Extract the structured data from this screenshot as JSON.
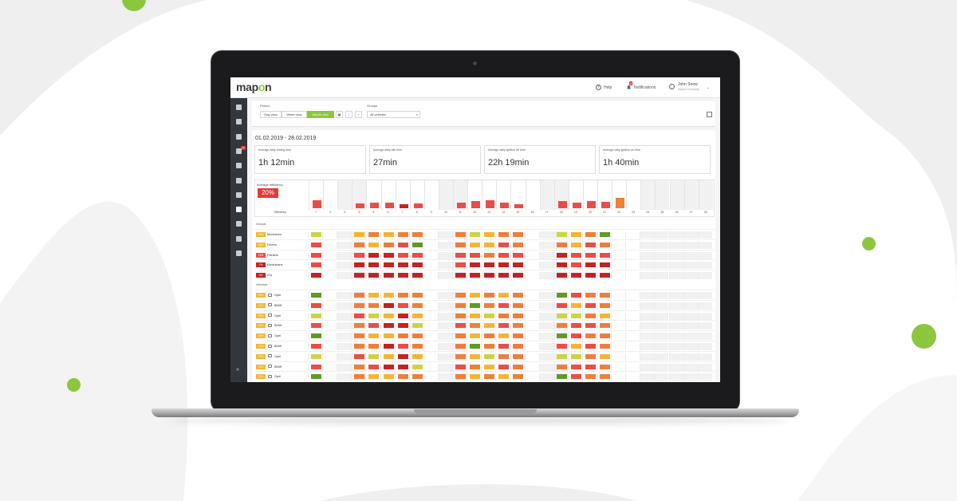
{
  "app": {
    "logo_prefix": "map",
    "logo_o": "o",
    "logo_suffix": "n"
  },
  "topbar": {
    "help": "Help",
    "notifications": "Notifications",
    "notif_count": "6",
    "user_name": "John Snow",
    "user_company": "Mapon Company"
  },
  "sidebar": {
    "badge": "12",
    "icons": [
      "dashboard-icon",
      "map-icon",
      "document-icon",
      "routes-icon",
      "wrench-icon",
      "person-icon",
      "fuel-icon",
      "clipboard-icon",
      "gear-icon",
      "clock-icon",
      "calendar-icon"
    ],
    "expand_icon": "»"
  },
  "filters": {
    "period_label": "Period",
    "day_view": "Day view",
    "week_view": "Week view",
    "month_view": "Month view",
    "groups_label": "Groups",
    "groups_value": "All vehicles",
    "prev": "‹",
    "next": "›"
  },
  "date_range": "01.02.2019 - 28.02.2019",
  "cards": [
    {
      "title": "Average daily driving time",
      "value": "1h 12min"
    },
    {
      "title": "Average daily idle time",
      "value": "27min"
    },
    {
      "title": "Average daily ignition off time",
      "value": "22h 19min"
    },
    {
      "title": "Average daily ignition on time",
      "value": "1h 40min"
    }
  ],
  "efficiency": {
    "label": "Average efficiency",
    "value": "20%",
    "row_label": "Efficiency",
    "days": [
      "1",
      "2",
      "3",
      "4",
      "5",
      "6",
      "7",
      "8",
      "9",
      "10",
      "11",
      "12",
      "13",
      "14",
      "15",
      "16",
      "17",
      "18",
      "19",
      "20",
      "21",
      "22",
      "23",
      "24",
      "25",
      "26",
      "27",
      "28"
    ],
    "weekend_days": [
      2,
      3,
      9,
      10,
      16,
      17,
      23,
      24,
      25,
      26,
      27,
      28
    ],
    "bar_values": [
      0.35,
      0,
      0,
      0.2,
      0.22,
      0.22,
      0.18,
      0.2,
      0,
      0,
      0.25,
      0.3,
      0.35,
      0.25,
      0.18,
      0,
      0,
      0.3,
      0.25,
      0.3,
      0.28,
      0.42,
      0,
      0,
      0,
      0,
      0,
      0
    ],
    "bar_colors": [
      "r",
      "",
      "",
      "r",
      "r",
      "r",
      "d",
      "r",
      "",
      "",
      "r",
      "r",
      "r",
      "r",
      "r",
      "",
      "",
      "r",
      "r",
      "r",
      "r",
      "o",
      "",
      "",
      "",
      "",
      "",
      ""
    ]
  },
  "colors": {
    "g": "#5f9a24",
    "y": "#cbd444",
    "a": "#f5b533",
    "o": "#f07e3a",
    "r": "#ec4c47",
    "d": "#c42223"
  },
  "groups_section": "Groups",
  "groups": [
    {
      "pct": "53%",
      "pct_color": "a",
      "name": "Mechanics",
      "cells": [
        "y",
        "",
        "",
        "a",
        "o",
        "a",
        "o",
        "o",
        "",
        "",
        "o",
        "y",
        "a",
        "o",
        "o",
        "",
        "",
        "y",
        "a",
        "o",
        "g",
        "",
        "",
        "",
        "",
        "",
        "",
        ""
      ]
    },
    {
      "pct": "46%",
      "pct_color": "a",
      "name": "Drivers",
      "cells": [
        "r",
        "",
        "",
        "o",
        "a",
        "o",
        "r",
        "g",
        "",
        "",
        "o",
        "a",
        "a",
        "r",
        "o",
        "",
        "",
        "o",
        "a",
        "r",
        "o",
        "",
        "",
        "",
        "",
        "",
        "",
        ""
      ]
    },
    {
      "pct": "19%",
      "pct_color": "r",
      "name": "Painters",
      "cells": [
        "r",
        "",
        "",
        "r",
        "d",
        "d",
        "r",
        "r",
        "",
        "",
        "r",
        "r",
        "o",
        "r",
        "r",
        "",
        "",
        "d",
        "r",
        "r",
        "r",
        "",
        "",
        "",
        "",
        "",
        "",
        ""
      ]
    },
    {
      "pct": "7%",
      "pct_color": "d",
      "name": "Electricians",
      "cells": [
        "r",
        "",
        "",
        "d",
        "d",
        "d",
        "d",
        "d",
        "",
        "",
        "r",
        "d",
        "d",
        "d",
        "d",
        "",
        "",
        "d",
        "r",
        "d",
        "d",
        "",
        "",
        "",
        "",
        "",
        "",
        ""
      ]
    },
    {
      "pct": "6%",
      "pct_color": "d",
      "name": "ISA",
      "cells": [
        "d",
        "",
        "",
        "d",
        "d",
        "d",
        "d",
        "d",
        "",
        "",
        "d",
        "d",
        "d",
        "d",
        "d",
        "",
        "",
        "d",
        "d",
        "d",
        "d",
        "",
        "",
        "",
        "",
        "",
        "",
        ""
      ]
    }
  ],
  "vehicles_section": "Vehicles",
  "vehicles": [
    {
      "pct": "53%",
      "pct_color": "a",
      "name": "Opel",
      "cells": [
        "g",
        "",
        "",
        "o",
        "a",
        "a",
        "o",
        "o",
        "",
        "",
        "o",
        "a",
        "o",
        "a",
        "o",
        "",
        "",
        "g",
        "r",
        "o",
        "o",
        "",
        "",
        "",
        "",
        "",
        "",
        ""
      ]
    },
    {
      "pct": "47%",
      "pct_color": "a",
      "name": "BMW",
      "cells": [
        "r",
        "",
        "",
        "o",
        "o",
        "d",
        "r",
        "o",
        "",
        "",
        "o",
        "g",
        "o",
        "r",
        "o",
        "",
        "",
        "r",
        "a",
        "r",
        "o",
        "",
        "",
        "",
        "",
        "",
        "",
        ""
      ]
    },
    {
      "pct": "53%",
      "pct_color": "a",
      "name": "Opel",
      "cells": [
        "y",
        "",
        "",
        "r",
        "y",
        "a",
        "d",
        "a",
        "",
        "",
        "o",
        "a",
        "y",
        "o",
        "o",
        "",
        "",
        "y",
        "y",
        "o",
        "a",
        "",
        "",
        "",
        "",
        "",
        "",
        ""
      ]
    },
    {
      "pct": "47%",
      "pct_color": "a",
      "name": "BMW",
      "cells": [
        "r",
        "",
        "",
        "o",
        "r",
        "d",
        "d",
        "y",
        "",
        "",
        "r",
        "o",
        "a",
        "r",
        "o",
        "",
        "",
        "o",
        "r",
        "r",
        "o",
        "",
        "",
        "",
        "",
        "",
        "",
        ""
      ]
    },
    {
      "pct": "53%",
      "pct_color": "a",
      "name": "Opel",
      "cells": [
        "g",
        "",
        "",
        "o",
        "a",
        "a",
        "o",
        "o",
        "",
        "",
        "o",
        "a",
        "o",
        "a",
        "o",
        "",
        "",
        "g",
        "r",
        "o",
        "o",
        "",
        "",
        "",
        "",
        "",
        "",
        ""
      ]
    },
    {
      "pct": "47%",
      "pct_color": "a",
      "name": "BMW",
      "cells": [
        "r",
        "",
        "",
        "o",
        "o",
        "d",
        "r",
        "o",
        "",
        "",
        "o",
        "g",
        "o",
        "r",
        "o",
        "",
        "",
        "r",
        "a",
        "r",
        "o",
        "",
        "",
        "",
        "",
        "",
        "",
        ""
      ]
    },
    {
      "pct": "53%",
      "pct_color": "a",
      "name": "Opel",
      "cells": [
        "y",
        "",
        "",
        "r",
        "y",
        "a",
        "d",
        "a",
        "",
        "",
        "o",
        "a",
        "y",
        "o",
        "o",
        "",
        "",
        "y",
        "y",
        "o",
        "a",
        "",
        "",
        "",
        "",
        "",
        "",
        ""
      ]
    },
    {
      "pct": "47%",
      "pct_color": "a",
      "name": "BMW",
      "cells": [
        "r",
        "",
        "",
        "o",
        "r",
        "d",
        "d",
        "y",
        "",
        "",
        "r",
        "o",
        "a",
        "r",
        "o",
        "",
        "",
        "o",
        "r",
        "r",
        "o",
        "",
        "",
        "",
        "",
        "",
        "",
        ""
      ]
    },
    {
      "pct": "53%",
      "pct_color": "a",
      "name": "Opel",
      "cells": [
        "g",
        "",
        "",
        "o",
        "a",
        "a",
        "o",
        "o",
        "",
        "",
        "o",
        "a",
        "o",
        "a",
        "o",
        "",
        "",
        "g",
        "r",
        "o",
        "o",
        "",
        "",
        "",
        "",
        "",
        "",
        ""
      ]
    }
  ]
}
